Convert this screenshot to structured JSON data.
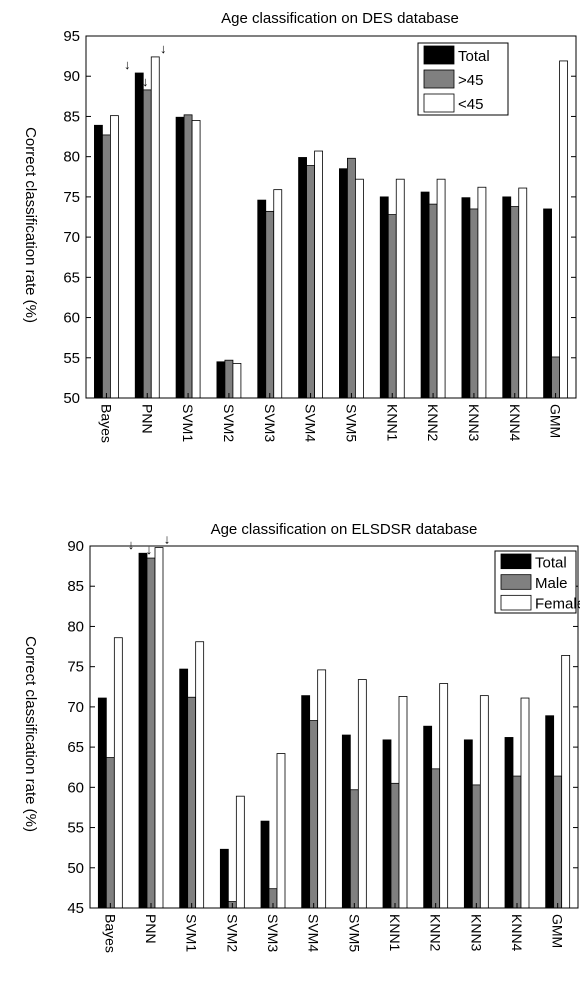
{
  "chart_data": [
    {
      "type": "bar",
      "title": "Age classification on DES database",
      "xlabel": "",
      "ylabel": "Correct classification rate (%)",
      "ylim": [
        50,
        95
      ],
      "yticks": [
        50,
        55,
        60,
        65,
        70,
        75,
        80,
        85,
        90,
        95
      ],
      "grid": false,
      "legend_position": "top-right",
      "categories": [
        "Bayes",
        "PNN",
        "SVM1",
        "SVM2",
        "SVM3",
        "SVM4",
        "SVM5",
        "KNN1",
        "KNN2",
        "KNN3",
        "KNN4",
        "GMM"
      ],
      "series": [
        {
          "name": "Total",
          "color": "#000000",
          "values": [
            83.9,
            90.4,
            84.9,
            54.5,
            74.6,
            79.9,
            78.5,
            75.0,
            75.6,
            74.9,
            75.0,
            73.5
          ]
        },
        {
          "name": ">45",
          "color": "#808080",
          "values": [
            82.7,
            88.3,
            85.2,
            54.7,
            73.2,
            78.9,
            79.8,
            72.8,
            74.1,
            73.5,
            73.8,
            55.1
          ]
        },
        {
          "name": "<45",
          "color": "#ffffff",
          "values": [
            85.1,
            92.4,
            84.5,
            54.3,
            75.9,
            80.7,
            77.2,
            77.2,
            77.2,
            76.2,
            76.1,
            91.9
          ]
        }
      ],
      "annotations": [
        "↓",
        "↓",
        "↓"
      ]
    },
    {
      "type": "bar",
      "title": "Age classification on ELSDSR database",
      "xlabel": "",
      "ylabel": "Correct classification rate (%)",
      "ylim": [
        45,
        90
      ],
      "yticks": [
        45,
        50,
        55,
        60,
        65,
        70,
        75,
        80,
        85,
        90
      ],
      "grid": false,
      "legend_position": "top-right",
      "categories": [
        "Bayes",
        "PNN",
        "SVM1",
        "SVM2",
        "SVM3",
        "SVM4",
        "SVM5",
        "KNN1",
        "KNN2",
        "KNN3",
        "KNN4",
        "GMM"
      ],
      "series": [
        {
          "name": "Total",
          "color": "#000000",
          "values": [
            71.1,
            89.1,
            74.7,
            52.3,
            55.8,
            71.4,
            66.5,
            65.9,
            67.6,
            65.9,
            66.2,
            68.9
          ]
        },
        {
          "name": "Male",
          "color": "#808080",
          "values": [
            63.7,
            88.5,
            71.2,
            45.8,
            47.4,
            68.3,
            59.7,
            60.5,
            62.3,
            60.3,
            61.4,
            61.4
          ]
        },
        {
          "name": "Female",
          "color": "#ffffff",
          "values": [
            78.6,
            89.8,
            78.1,
            58.9,
            64.2,
            74.6,
            73.4,
            71.3,
            72.9,
            71.4,
            71.1,
            76.4
          ]
        }
      ],
      "annotations": [
        "↓",
        "↓",
        "↓"
      ]
    }
  ]
}
